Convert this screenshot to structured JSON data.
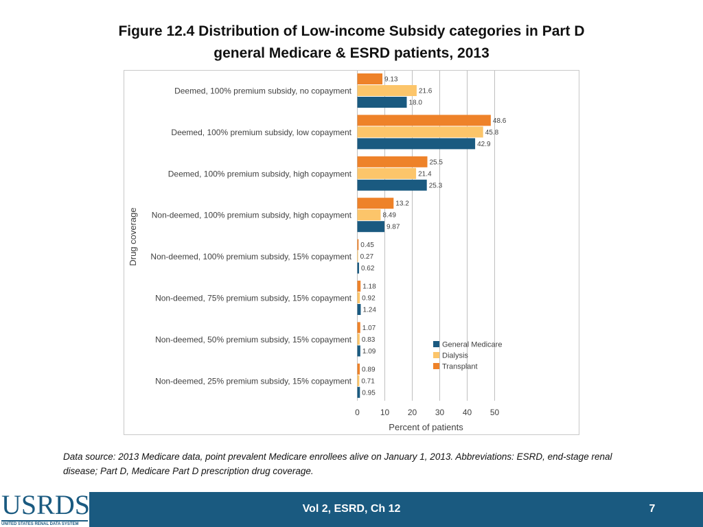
{
  "title_line1": "Figure 12.4 Distribution of Low-income Subsidy categories in Part D",
  "title_line2": "general Medicare & ESRD patients, 2013",
  "chart_data": {
    "type": "bar",
    "orientation": "horizontal",
    "ylabel": "Drug coverage",
    "xlabel": "Percent of patients",
    "xlim": [
      0,
      50
    ],
    "xticks": [
      0,
      10,
      20,
      30,
      40,
      50
    ],
    "grid": "vertical",
    "legend_position": "bottom-right",
    "categories": [
      "Deemed, 100% premium subsidy, no copayment",
      "Deemed, 100% premium subsidy, low copayment",
      "Deemed, 100% premium subsidy, high copayment",
      "Non-deemed, 100% premium subsidy, high copayment",
      "Non-deemed, 100% premium subsidy, 15% copayment",
      "Non-deemed, 75% premium subsidy, 15% copayment",
      "Non-deemed, 50% premium subsidy, 15% copayment",
      "Non-deemed, 25% premium subsidy, 15% copayment"
    ],
    "series": [
      {
        "name": "Transplant",
        "color": "#ee8229",
        "values": [
          9.13,
          48.6,
          25.5,
          13.2,
          0.45,
          1.18,
          1.07,
          0.89
        ],
        "labels": [
          "9.13",
          "48.6",
          "25.5",
          "13.2",
          "0.45",
          "1.18",
          "1.07",
          "0.89"
        ]
      },
      {
        "name": "Dialysis",
        "color": "#fcc56a",
        "values": [
          21.6,
          45.8,
          21.4,
          8.49,
          0.27,
          0.92,
          0.83,
          0.71
        ],
        "labels": [
          "21.6",
          "45.8",
          "21.4",
          "8.49",
          "0.27",
          "0.92",
          "0.83",
          "0.71"
        ]
      },
      {
        "name": "General Medicare",
        "color": "#1a5a80",
        "values": [
          18.0,
          42.9,
          25.3,
          9.87,
          0.62,
          1.24,
          1.09,
          0.95
        ],
        "labels": [
          "18.0",
          "42.9",
          "25.3",
          "9.87",
          "0.62",
          "1.24",
          "1.09",
          "0.95"
        ]
      }
    ],
    "legend_order": [
      "General Medicare",
      "Dialysis",
      "Transplant"
    ]
  },
  "data_source_text": "Data source: 2013 Medicare data, point prevalent Medicare enrollees alive on January 1, 2013. Abbreviations: ESRD, end-stage renal disease; Part D, Medicare Part D prescription drug coverage.",
  "logo": {
    "wordmark": "USRDS",
    "subtitle": "UNITED STATES RENAL DATA SYSTEM"
  },
  "footer": {
    "center_text": "Vol 2, ESRD, Ch 12",
    "page_number": "7"
  }
}
